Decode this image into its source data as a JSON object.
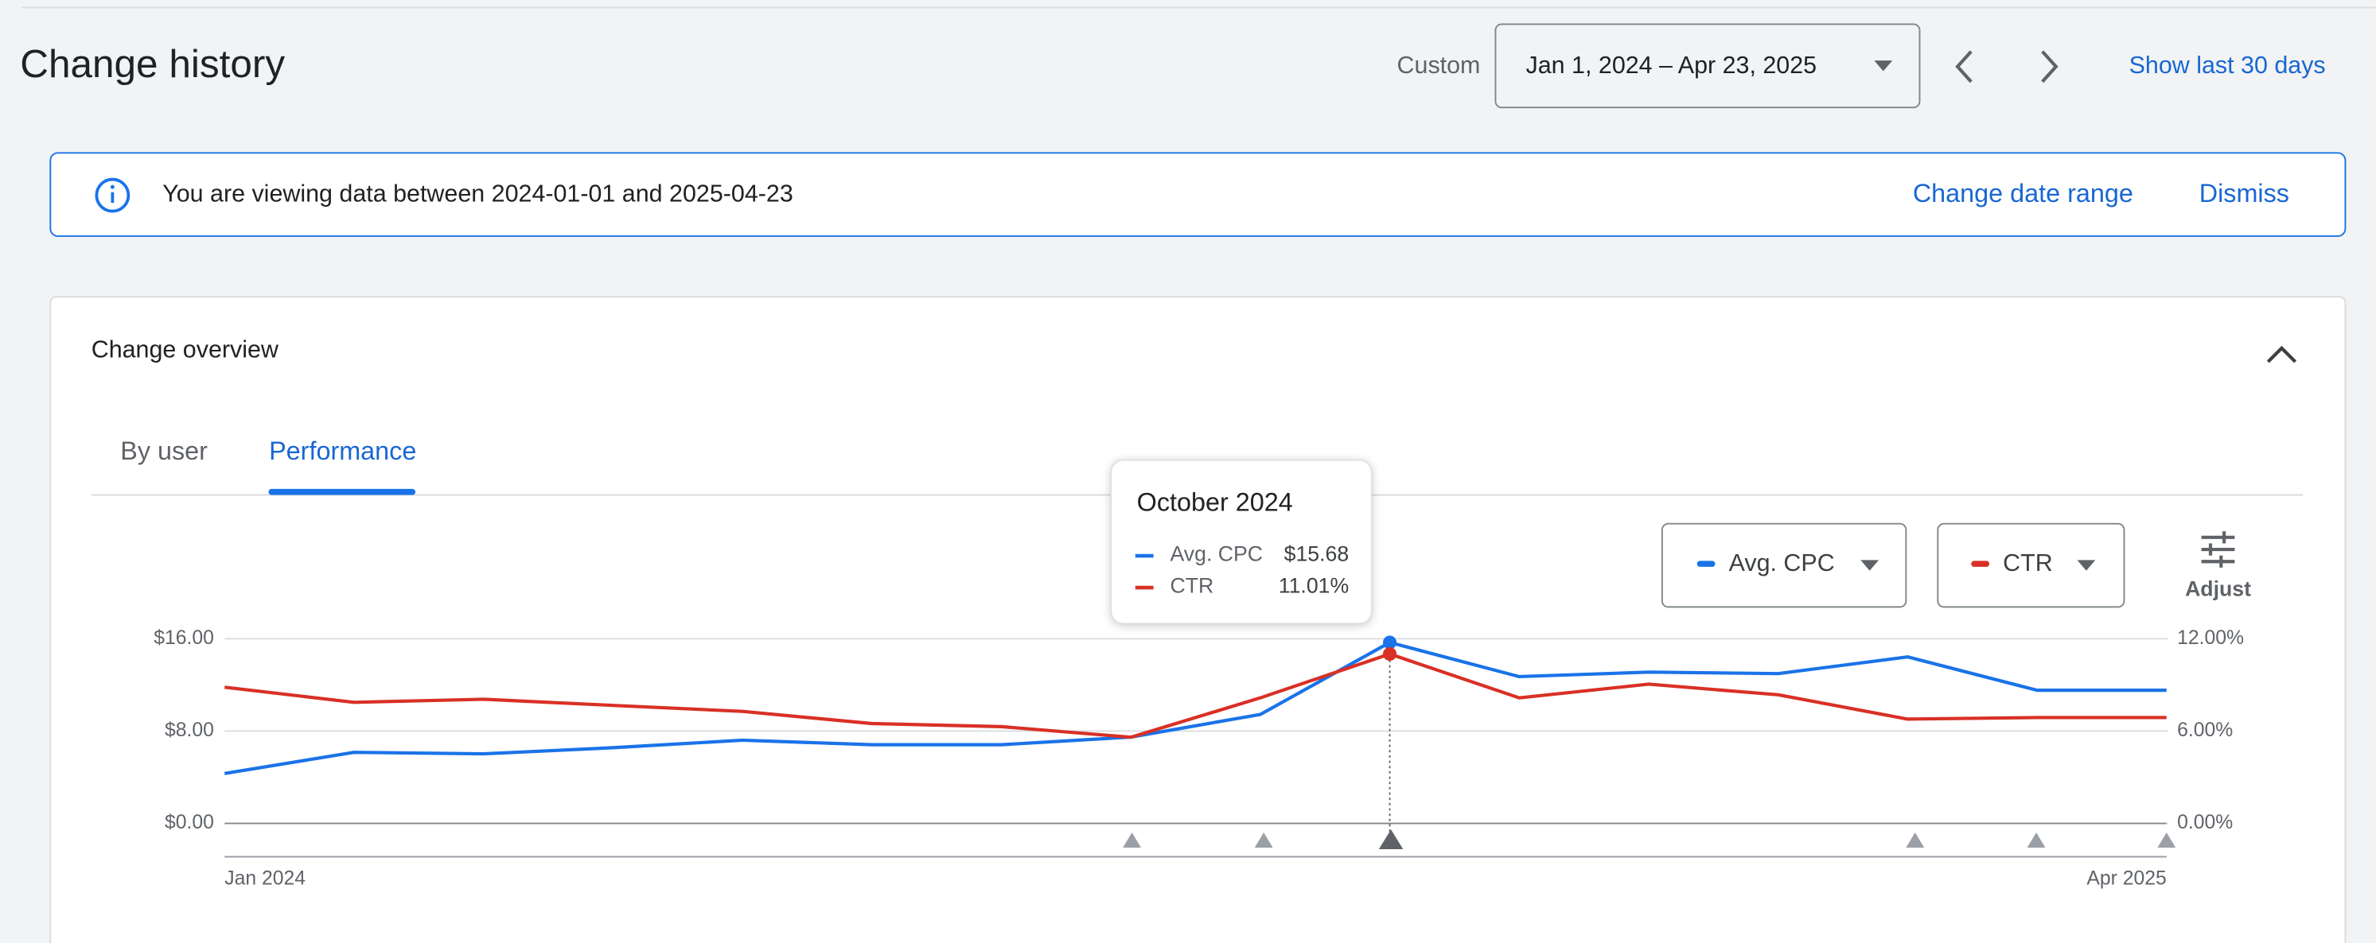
{
  "header": {
    "title": "Change history",
    "range_type": "Custom",
    "date_range": "Jan 1, 2024 – Apr 23, 2025",
    "quick_range": "Show last 30 days"
  },
  "banner": {
    "text": "You are viewing data between 2024-01-01 and 2025-04-23",
    "change": "Change date range",
    "dismiss": "Dismiss"
  },
  "card": {
    "title": "Change overview",
    "tabs": [
      "By user",
      "Performance"
    ],
    "adjust": "Adjust"
  },
  "chart_data": {
    "type": "line",
    "tooltip": "October 2024",
    "categories": [
      "Jan 2024",
      null,
      null,
      null,
      null,
      null,
      null,
      null,
      null,
      null,
      null,
      null,
      null,
      null,
      null,
      "Apr 2025"
    ],
    "series": [
      {
        "name": "Avg. CPC",
        "color": "#1a73e8",
        "values": [
          4.33,
          6.16,
          6.03,
          6.56,
          7.21,
          6.82,
          6.82,
          7.48,
          9.44,
          15.68,
          12.72,
          13.11,
          12.98,
          14.43,
          11.54,
          11.54
        ],
        "value_labels": [
          null,
          null,
          null,
          null,
          null,
          null,
          null,
          null,
          null,
          "$15.68",
          null,
          null,
          null,
          null,
          null,
          null
        ]
      },
      {
        "name": "CTR",
        "color": "#d93025",
        "axis": "y2",
        "values": [
          8.85,
          7.87,
          8.07,
          7.67,
          7.28,
          6.49,
          6.29,
          5.6,
          8.16,
          11.01,
          8.16,
          9.05,
          8.36,
          6.78,
          6.88,
          6.88
        ],
        "value_labels": [
          null,
          null,
          null,
          null,
          null,
          null,
          null,
          null,
          null,
          "11.01%",
          null,
          null,
          null,
          null,
          null,
          null
        ]
      }
    ],
    "ylim": [
      0,
      16
    ],
    "yticks": [
      {
        "value": 0,
        "label": "$0.00"
      },
      {
        "value": 8,
        "label": "$8.00"
      },
      {
        "value": 16,
        "label": "$16.00"
      }
    ],
    "y2lim": [
      0,
      12
    ],
    "y2ticks": [
      {
        "value": 0,
        "label": "0.00%"
      },
      {
        "value": 6,
        "label": "6.00%"
      },
      {
        "value": 12,
        "label": "12.00%"
      }
    ],
    "grid": true
  }
}
